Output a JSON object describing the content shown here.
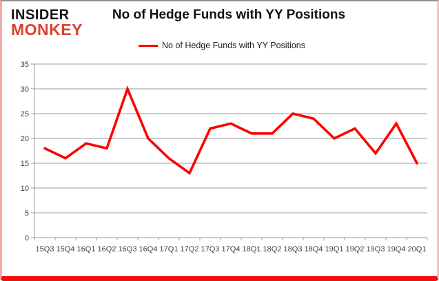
{
  "logo": {
    "line1": "INSIDER",
    "line2": "MONKEY",
    "line1_color": "#121212",
    "line2_color": "#d9432f"
  },
  "header": {
    "title": "No of Hedge Funds with YY Positions"
  },
  "legend": {
    "label": "No of Hedge Funds with YY Positions",
    "line_color": "#ff0000"
  },
  "chart_data": {
    "type": "line",
    "title": "No of Hedge Funds with YY Positions",
    "categories": [
      "15Q3",
      "15Q4",
      "16Q1",
      "16Q2",
      "16Q3",
      "16Q4",
      "17Q1",
      "17Q2",
      "17Q3",
      "17Q4",
      "18Q1",
      "18Q2",
      "18Q3",
      "18Q4",
      "19Q1",
      "19Q2",
      "19Q3",
      "19Q4",
      "20Q1"
    ],
    "series": [
      {
        "name": "No of Hedge Funds with YY Positions",
        "values": [
          18,
          16,
          19,
          18,
          30,
          20,
          16,
          13,
          22,
          23,
          21,
          21,
          25,
          24,
          20,
          22,
          17,
          23,
          15
        ],
        "color": "#ff0000"
      }
    ],
    "xlabel": "",
    "ylabel": "",
    "ylim": [
      0,
      35
    ],
    "yticks": [
      0,
      5,
      10,
      15,
      20,
      25,
      30,
      35
    ],
    "grid": "horizontal",
    "gridline_color": "#9b9b9b",
    "axis_color": "#9b9b9b",
    "axis_label_color": "#3d3d3d",
    "legend_position": "top-center"
  }
}
